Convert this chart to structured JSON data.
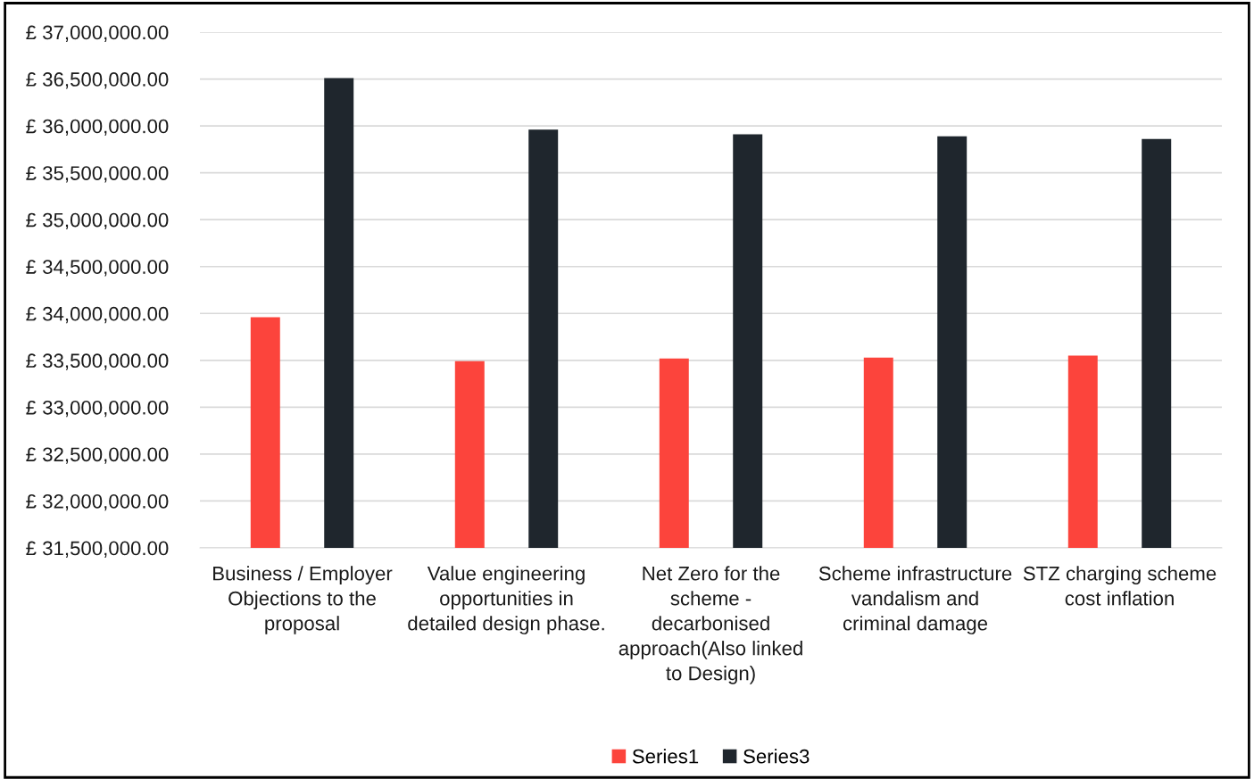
{
  "chart_data": {
    "type": "bar",
    "categories": [
      "Business / Employer Objections to the proposal",
      "Value engineering opportunities in detailed design phase.",
      "Net Zero for the scheme - decarbonised approach(Also linked to Design)",
      "Scheme infrastructure vandalism and criminal damage",
      "STZ charging scheme cost inflation"
    ],
    "series": [
      {
        "name": "Series1",
        "color": "#fc443c",
        "values": [
          33960000,
          33490000,
          33520000,
          33530000,
          33550000
        ]
      },
      {
        "name": "Series3",
        "color": "#1f262d",
        "values": [
          36510000,
          35960000,
          35910000,
          35890000,
          35860000
        ]
      }
    ],
    "ylim": [
      31500000,
      37000000
    ],
    "yticks": [
      {
        "value": 31500000,
        "label": "£ 31,500,000.00"
      },
      {
        "value": 32000000,
        "label": "£ 32,000,000.00"
      },
      {
        "value": 32500000,
        "label": "£ 32,500,000.00"
      },
      {
        "value": 33000000,
        "label": "£ 33,000,000.00"
      },
      {
        "value": 33500000,
        "label": "£ 33,500,000.00"
      },
      {
        "value": 34000000,
        "label": "£ 34,000,000.00"
      },
      {
        "value": 34500000,
        "label": "£ 34,500,000.00"
      },
      {
        "value": 35000000,
        "label": "£ 35,000,000.00"
      },
      {
        "value": 35500000,
        "label": "£ 35,500,000.00"
      },
      {
        "value": 36000000,
        "label": "£ 36,000,000.00"
      },
      {
        "value": 36500000,
        "label": "£ 36,500,000.00"
      },
      {
        "value": 37000000,
        "label": "£ 37,000,000.00"
      }
    ],
    "grid": "y",
    "legend": "bottom"
  }
}
